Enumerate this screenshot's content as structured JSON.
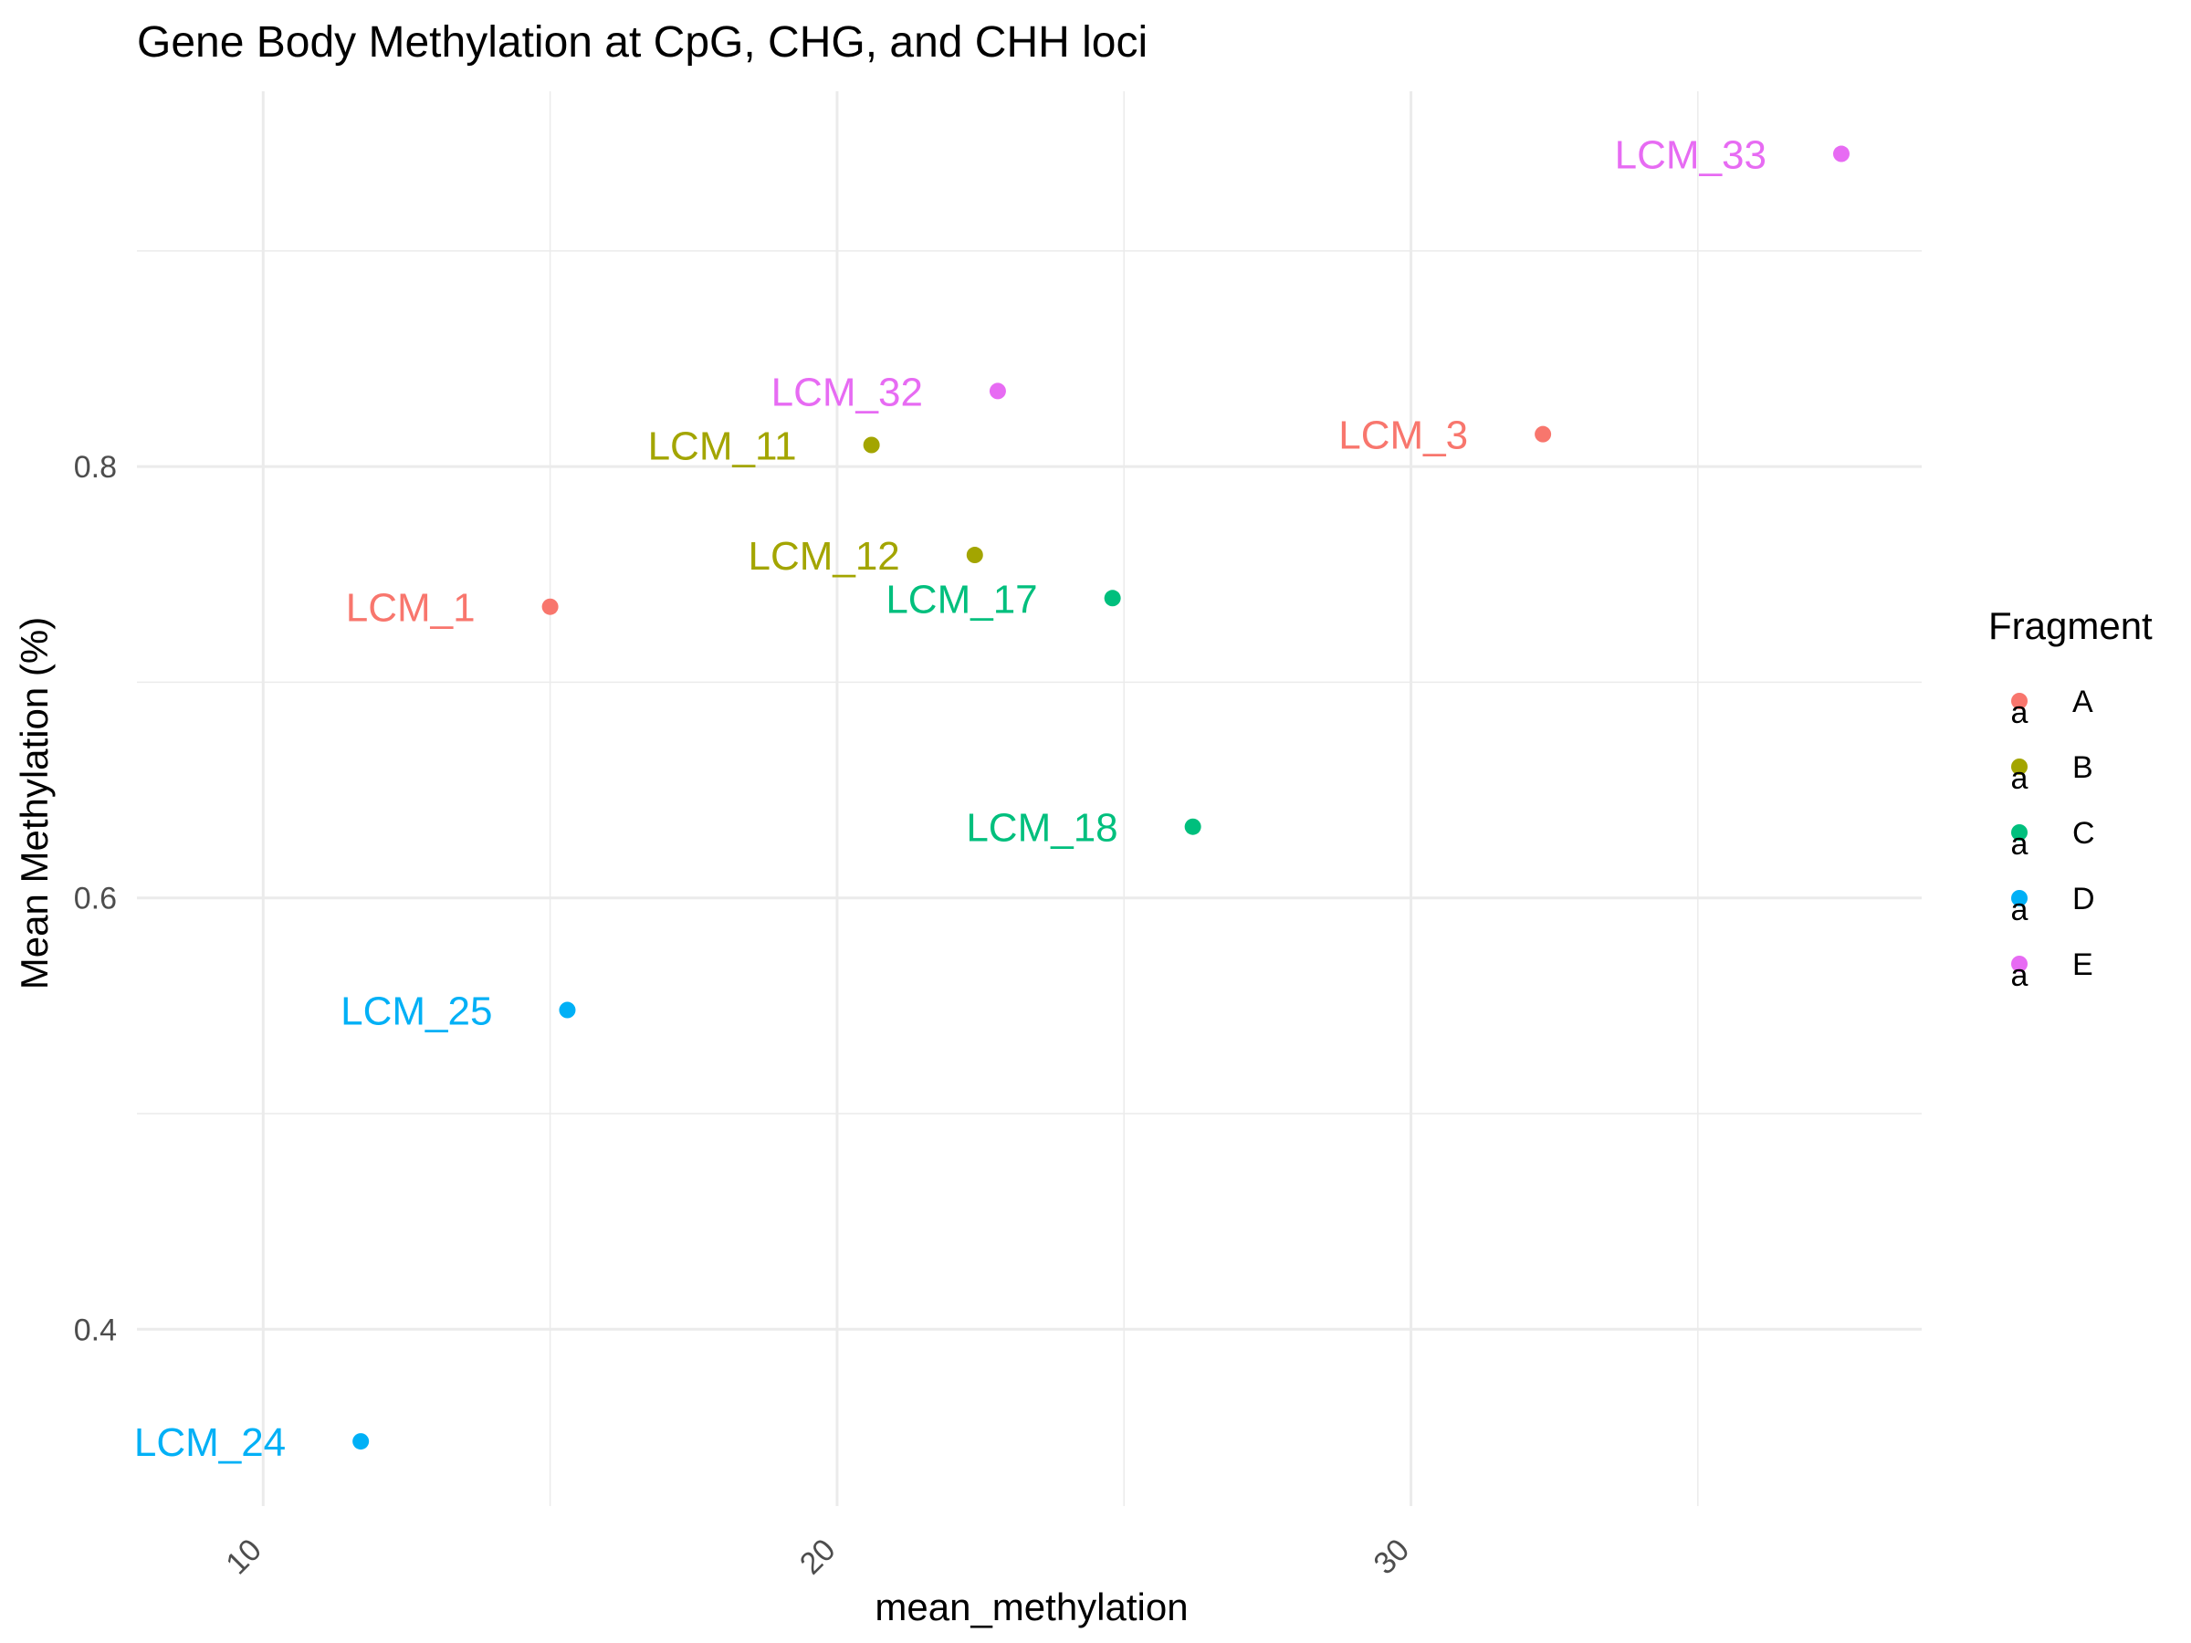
{
  "chart_data": {
    "type": "scatter",
    "title": "Gene Body Methylation at CpG, CHG, and CHH loci",
    "xlabel": "mean_methylation",
    "ylabel": "Mean Methylation (%)",
    "xlim": [
      7.8,
      38.9
    ],
    "ylim": [
      0.318,
      0.974
    ],
    "x_ticks": [
      10,
      20,
      30
    ],
    "x_tick_labels": [
      "10",
      "20",
      "30"
    ],
    "y_ticks": [
      0.4,
      0.6,
      0.8
    ],
    "y_tick_labels": [
      "0.4",
      "0.6",
      "0.8"
    ],
    "grid": true,
    "legend": {
      "title": "Fragment",
      "placement": "right",
      "entries": [
        {
          "name": "A",
          "color": "#F8766D"
        },
        {
          "name": "B",
          "color": "#A3A500"
        },
        {
          "name": "C",
          "color": "#00BF7D"
        },
        {
          "name": "D",
          "color": "#00B0F6"
        },
        {
          "name": "E",
          "color": "#E76BF3"
        }
      ],
      "key_glyph": "a"
    },
    "points": [
      {
        "label": "LCM_1",
        "fragment": "A",
        "x": 15.0,
        "y": 0.735
      },
      {
        "label": "LCM_3",
        "fragment": "A",
        "x": 32.3,
        "y": 0.815
      },
      {
        "label": "LCM_11",
        "fragment": "B",
        "x": 20.6,
        "y": 0.81
      },
      {
        "label": "LCM_12",
        "fragment": "B",
        "x": 22.4,
        "y": 0.759
      },
      {
        "label": "LCM_17",
        "fragment": "C",
        "x": 24.8,
        "y": 0.739
      },
      {
        "label": "LCM_18",
        "fragment": "C",
        "x": 26.2,
        "y": 0.633
      },
      {
        "label": "LCM_24",
        "fragment": "D",
        "x": 11.7,
        "y": 0.348
      },
      {
        "label": "LCM_25",
        "fragment": "D",
        "x": 15.3,
        "y": 0.548
      },
      {
        "label": "LCM_32",
        "fragment": "E",
        "x": 22.8,
        "y": 0.835
      },
      {
        "label": "LCM_33",
        "fragment": "E",
        "x": 37.5,
        "y": 0.945
      }
    ]
  }
}
